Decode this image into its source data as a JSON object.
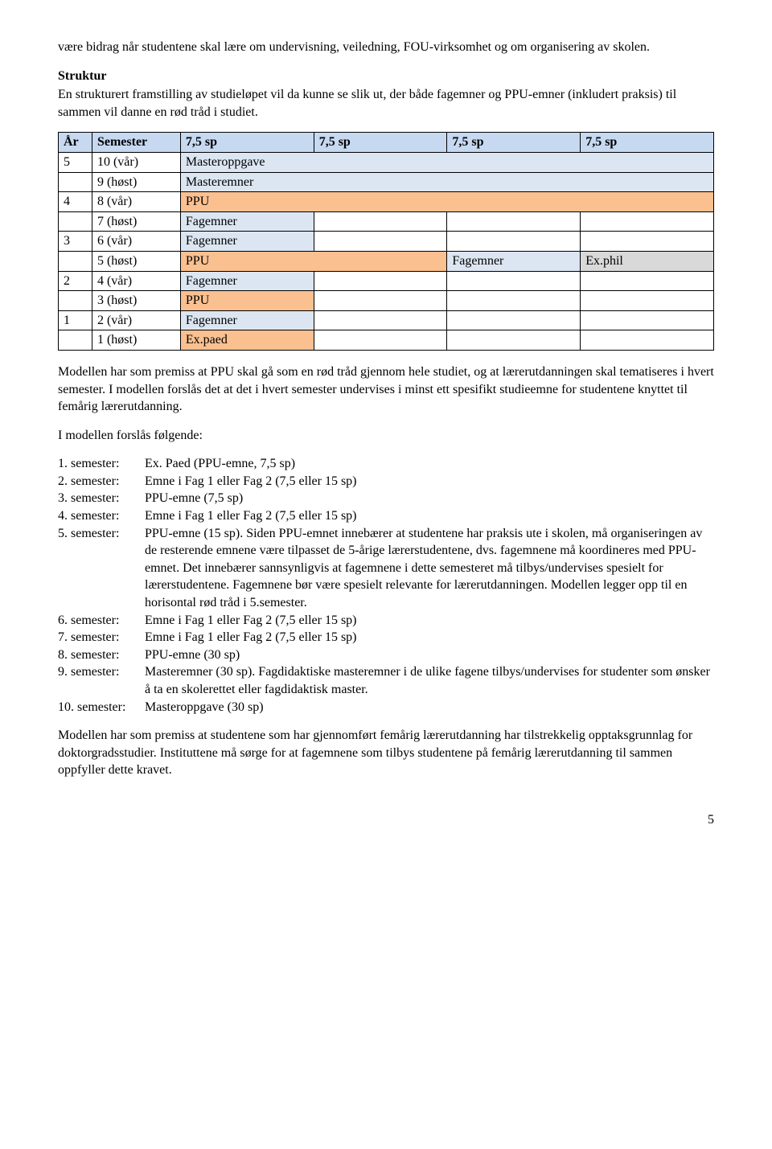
{
  "intro_p1": "være bidrag når studentene skal lære om undervisning, veiledning, FOU-virksomhet og om organisering av skolen.",
  "struktur": {
    "heading": "Struktur",
    "p1": "En strukturert framstilling av studieløpet vil da kunne se slik ut, der både fagemner og PPU-emner (inkludert praksis) til sammen vil danne en rød tråd i studiet."
  },
  "table": {
    "headers": {
      "ar": "År",
      "sem": "Semester",
      "sp": "7,5 sp"
    },
    "rows": [
      {
        "ar": "5",
        "sem": "10 (vår)",
        "span4": "Masteroppgave",
        "cls": "lav"
      },
      {
        "ar": "",
        "sem": "9 (høst)",
        "span4": "Masteremner",
        "cls": "lav"
      },
      {
        "ar": "4",
        "sem": "8 (vår)",
        "span4": "PPU",
        "cls": "orange"
      },
      {
        "ar": "",
        "sem": "7 (høst)",
        "c1": "Fagemner",
        "c1cls": "lav",
        "c2": "",
        "c3": "",
        "c4": ""
      },
      {
        "ar": "3",
        "sem": "6 (vår)",
        "c1": "Fagemner",
        "c1cls": "lav",
        "c2": "",
        "c3": "",
        "c4": ""
      },
      {
        "ar": "",
        "sem": "5 (høst)",
        "c12": "PPU",
        "c12cls": "orange",
        "c3": "Fagemner",
        "c3cls": "lav",
        "c4": "Ex.phil",
        "c4cls": "gray"
      },
      {
        "ar": "2",
        "sem": "4 (vår)",
        "c1": "Fagemner",
        "c1cls": "lav",
        "c2": "",
        "c3": "",
        "c4": ""
      },
      {
        "ar": "",
        "sem": "3 (høst)",
        "c1": "PPU",
        "c1cls": "orange",
        "c2": "",
        "c3": "",
        "c4": ""
      },
      {
        "ar": "1",
        "sem": "2 (vår)",
        "c1": "Fagemner",
        "c1cls": "lav",
        "c2": "",
        "c3": "",
        "c4": ""
      },
      {
        "ar": "",
        "sem": "1 (høst)",
        "c1": "Ex.paed",
        "c1cls": "orange",
        "c2": "",
        "c3": "",
        "c4": ""
      }
    ]
  },
  "after_table_p": "Modellen har som premiss at PPU skal gå som en rød tråd gjennom hele studiet, og at lærerutdanningen skal tematiseres i hvert semester. I modellen forslås det at det i hvert semester undervises i minst ett spesifikt studieemne for studentene knyttet til femårig lærerutdanning.",
  "forslaas_p": "I modellen forslås følgende:",
  "semesters": [
    {
      "label": "1. semester:",
      "text": "Ex. Paed (PPU-emne, 7,5 sp)"
    },
    {
      "label": "2. semester:",
      "text": "Emne i Fag 1 eller Fag 2 (7,5 eller 15 sp)"
    },
    {
      "label": "3. semester:",
      "text": "PPU-emne (7,5 sp)"
    },
    {
      "label": "4. semester:",
      "text": "Emne i Fag 1 eller Fag 2 (7,5 eller 15 sp)"
    },
    {
      "label": "5. semester:",
      "text": "PPU-emne (15 sp). Siden PPU-emnet innebærer at studentene har praksis ute i skolen, må organiseringen av de resterende emnene være tilpasset de 5-årige lærerstudentene, dvs. fagemnene må koordineres med PPU-emnet. Det innebærer sannsynligvis at fagemnene i dette semesteret må tilbys/undervises spesielt for lærerstudentene. Fagemnene bør være spesielt relevante for lærerutdanningen. Modellen legger opp til en horisontal rød tråd i 5.semester."
    },
    {
      "label": "6. semester:",
      "text": "Emne i Fag 1 eller Fag 2 (7,5 eller 15 sp)"
    },
    {
      "label": "7. semester:",
      "text": "Emne i Fag 1 eller Fag 2 (7,5 eller 15 sp)"
    },
    {
      "label": "8. semester:",
      "text": "PPU-emne (30 sp)"
    },
    {
      "label": "9. semester:",
      "text": "Masteremner (30 sp). Fagdidaktiske masteremner i de ulike fagene tilbys/undervises for studenter som ønsker å ta en skolerettet eller fagdidaktisk master."
    },
    {
      "label": "10. semester:",
      "text": "Masteroppgave (30 sp)"
    }
  ],
  "final_p": "Modellen har som premiss at studentene som har gjennomført femårig lærerutdanning har tilstrekkelig opptaksgrunnlag for doktorgradsstudier. Instituttene må sørge for at fagemnene som tilbys studentene på femårig lærerutdanning til sammen oppfyller dette kravet.",
  "page_number": "5"
}
